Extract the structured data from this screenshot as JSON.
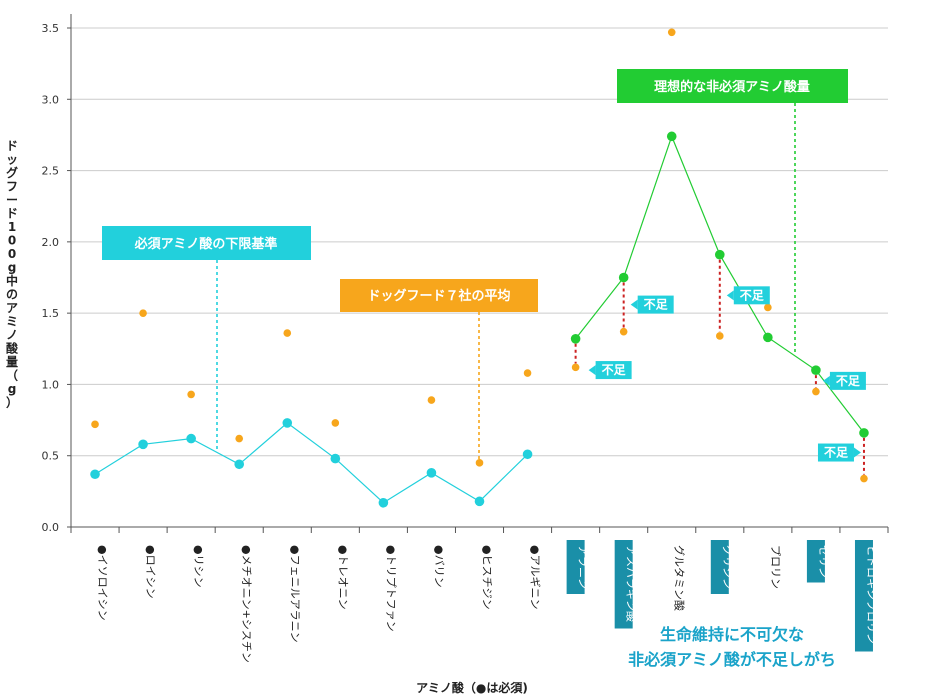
{
  "chart_data": {
    "type": "line",
    "ylabel": "ドッグフード100g中のアミノ酸量（g）",
    "xlabel": "アミノ酸（●は必須)",
    "ylim": [
      0,
      3.5
    ],
    "yticks": [
      "0.0",
      "0.5",
      "1.0",
      "1.5",
      "2.0",
      "2.5",
      "3.0",
      "3.5"
    ],
    "categories": [
      {
        "label": "●イソロイシン",
        "essential": true
      },
      {
        "label": "●ロイシン",
        "essential": true
      },
      {
        "label": "●リシン",
        "essential": true
      },
      {
        "label": "●メチオニン+シスチン",
        "essential": true
      },
      {
        "label": "●フェニルアラニン",
        "essential": true
      },
      {
        "label": "●トレオニン",
        "essential": true
      },
      {
        "label": "●トリプトファン",
        "essential": true
      },
      {
        "label": "●バリン",
        "essential": true
      },
      {
        "label": "●ヒスチジン",
        "essential": true
      },
      {
        "label": "●アルギニン",
        "essential": true
      },
      {
        "label": "アラニン",
        "essential": false,
        "highlight": true
      },
      {
        "label": "アスパラギン酸",
        "essential": false,
        "highlight": true
      },
      {
        "label": "グルタミン酸",
        "essential": false,
        "highlight": false
      },
      {
        "label": "グリシン",
        "essential": false,
        "highlight": true
      },
      {
        "label": "プロリン",
        "essential": false,
        "highlight": false
      },
      {
        "label": "セリン",
        "essential": false,
        "highlight": true
      },
      {
        "label": "ヒドロキシプロリン",
        "essential": false,
        "highlight": true
      }
    ],
    "series": [
      {
        "name": "必須アミノ酸の下限基準",
        "color": "#22d0dc",
        "type": "line",
        "values": [
          0.37,
          0.58,
          0.62,
          0.44,
          0.73,
          0.48,
          0.17,
          0.38,
          0.18,
          0.51,
          null,
          null,
          null,
          null,
          null,
          null,
          null
        ]
      },
      {
        "name": "ドッグフード７社の平均",
        "color": "#f7a61c",
        "type": "scatter",
        "values": [
          0.72,
          1.5,
          0.93,
          0.62,
          1.36,
          0.73,
          null,
          0.89,
          0.45,
          1.08,
          1.12,
          1.37,
          3.47,
          1.34,
          1.54,
          0.95,
          0.34
        ]
      },
      {
        "name": "理想的な非必須アミノ酸量",
        "color": "#22cc33",
        "type": "line",
        "values": [
          null,
          null,
          null,
          null,
          null,
          null,
          null,
          null,
          null,
          null,
          1.32,
          1.75,
          2.74,
          1.91,
          1.33,
          1.1,
          0.66
        ]
      }
    ],
    "callouts": {
      "lower_bound": "必須アミノ酸の下限基準",
      "average": "ドッグフード７社の平均",
      "ideal": "理想的な非必須アミノ酸量"
    },
    "shortage_label": "不足",
    "shortage_categories": [
      10,
      11,
      13,
      15,
      16
    ],
    "note_lines": [
      "生命維持に不可欠な",
      "非必須アミノ酸が不足しがち"
    ]
  },
  "colors": {
    "cyan": "#22d0dc",
    "orange": "#f7a61c",
    "green": "#22cc33",
    "teal_box": "#1a8fa8",
    "red_dash": "#cc2222",
    "grid": "#cccccc"
  }
}
